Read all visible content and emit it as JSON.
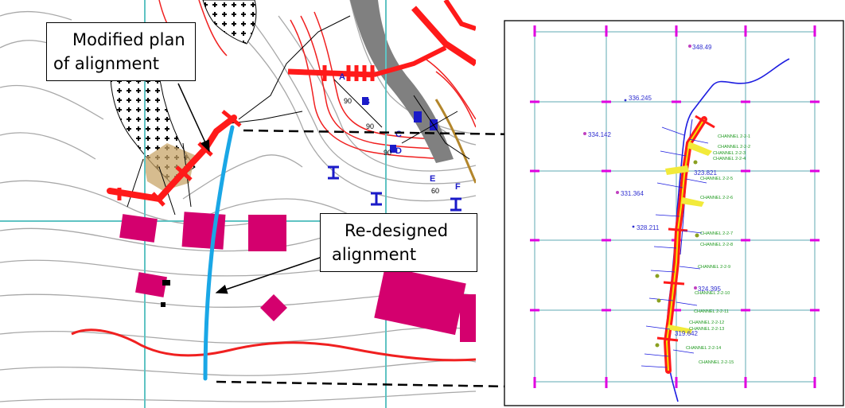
{
  "callouts": {
    "modified": {
      "line1": "Modified  plan",
      "line2": "of alignment"
    },
    "redesigned": {
      "line1": "Re-designed",
      "line2": "alignment"
    }
  },
  "map_labels": {
    "contour_a": "90",
    "contour_b": "90",
    "contour_c": "90",
    "contour_d": "60",
    "letter_a": "A",
    "letter_b": "B",
    "letter_c": "C",
    "letter_d": "D",
    "letter_e": "E",
    "letter_f": "F"
  },
  "plan_elevations": [
    "348.49",
    "336.245",
    "334.142",
    "323.821",
    "331.364",
    "328.211",
    "324.395",
    "319.642"
  ],
  "plan_channels": [
    "CHANNEL 2-2-1",
    "CHANNEL 2-2-2",
    "CHANNEL 2-2-3",
    "CHANNEL 2-2-4",
    "CHANNEL 2-2-5",
    "CHANNEL 2-2-6",
    "CHANNEL 2-2-7",
    "CHANNEL 2-2-8",
    "CHANNEL 2-2-9",
    "CHANNEL 2-2-10",
    "CHANNEL 2-2-11",
    "CHANNEL 2-2-12",
    "CHANNEL 2-2-13",
    "CHANNEL 2-2-14",
    "CHANNEL 2-2-15"
  ],
  "colors": {
    "alignment_red": "#ff1a1a",
    "redesign_blue": "#1aa7e6",
    "grid_teal": "#5fc3c3",
    "building_magenta": "#d4006e",
    "river_blue": "#1d1de0",
    "channel_green": "#1f9a1f",
    "elevation_blue": "#3030d0",
    "grid_magenta": "#e000e0"
  }
}
